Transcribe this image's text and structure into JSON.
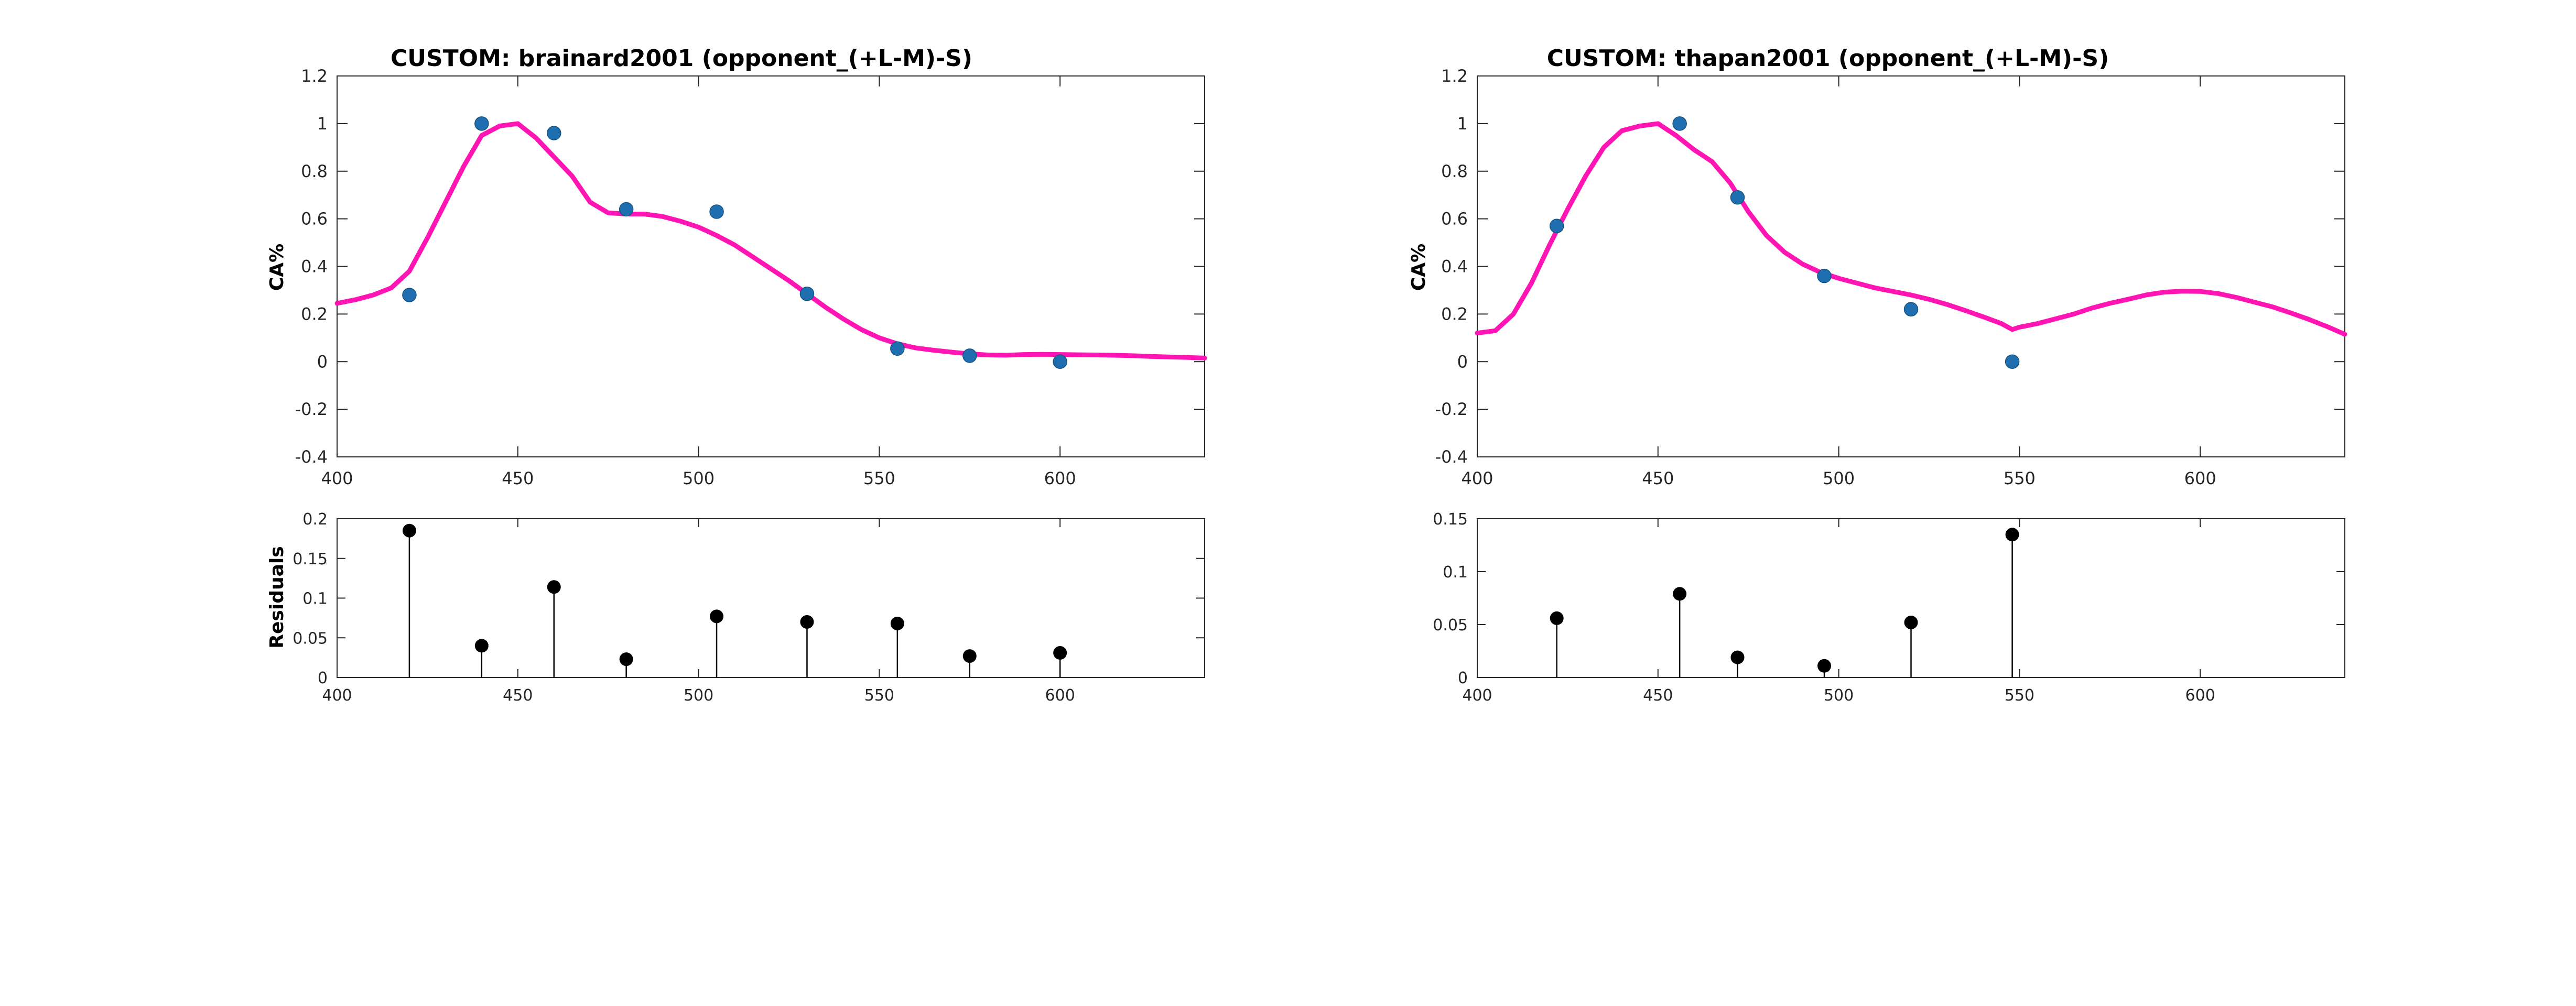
{
  "colors": {
    "fit": "#ff14b4",
    "points": "#1f6fb0",
    "points_edge": "#17527f",
    "stems": "#000000"
  },
  "chart_data": [
    {
      "type": "line",
      "title": "CUSTOM: brainard2001 (opponent_(+L-M)-S)",
      "xlabel": "",
      "ylabel": "CA%",
      "xlim": [
        400,
        640
      ],
      "ylim": [
        -0.4,
        1.2
      ],
      "xticks": [
        400,
        450,
        500,
        550,
        600
      ],
      "xtick_labels": [
        "400",
        "450",
        "500",
        "550",
        "600"
      ],
      "yticks": [
        -0.4,
        -0.2,
        0,
        0.2,
        0.4,
        0.6,
        0.8,
        1,
        1.2
      ],
      "ytick_labels": [
        "-0.4",
        "-0.2",
        "0",
        "0.2",
        "0.4",
        "0.6",
        "0.8",
        "1",
        "1.2"
      ],
      "grid": false,
      "series": [
        {
          "kind": "line",
          "x": [
            400,
            405,
            410,
            415,
            420,
            425,
            430,
            435,
            440,
            445,
            450,
            455,
            460,
            465,
            470,
            475,
            480,
            485,
            490,
            495,
            500,
            505,
            510,
            515,
            520,
            525,
            530,
            535,
            540,
            545,
            550,
            555,
            560,
            565,
            570,
            575,
            580,
            585,
            590,
            595,
            600,
            605,
            610,
            615,
            620,
            625,
            630,
            635,
            640
          ],
          "y": [
            0.245,
            0.26,
            0.28,
            0.31,
            0.38,
            0.52,
            0.67,
            0.82,
            0.95,
            0.99,
            1.0,
            0.94,
            0.86,
            0.78,
            0.67,
            0.625,
            0.62,
            0.62,
            0.61,
            0.59,
            0.565,
            0.53,
            0.49,
            0.44,
            0.39,
            0.34,
            0.285,
            0.23,
            0.18,
            0.135,
            0.1,
            0.075,
            0.058,
            0.048,
            0.04,
            0.033,
            0.028,
            0.027,
            0.03,
            0.031,
            0.03,
            0.029,
            0.028,
            0.027,
            0.025,
            0.022,
            0.02,
            0.018,
            0.015
          ]
        },
        {
          "kind": "scatter",
          "x": [
            420,
            440,
            460,
            480,
            505,
            530,
            555,
            575,
            600
          ],
          "y": [
            0.28,
            1.0,
            0.96,
            0.64,
            0.63,
            0.285,
            0.055,
            0.025,
            0.0
          ]
        }
      ]
    },
    {
      "type": "stem",
      "title": "",
      "xlabel": "",
      "ylabel": "Residuals",
      "xlim": [
        400,
        640
      ],
      "ylim": [
        0,
        0.2
      ],
      "xticks": [
        400,
        450,
        500,
        550,
        600
      ],
      "xtick_labels": [
        "400",
        "450",
        "500",
        "550",
        "600"
      ],
      "yticks": [
        0,
        0.05,
        0.1,
        0.15,
        0.2
      ],
      "ytick_labels": [
        "0",
        "0.05",
        "0.1",
        "0.15",
        "0.2"
      ],
      "grid": false,
      "series": [
        {
          "kind": "stem",
          "x": [
            420,
            440,
            460,
            480,
            505,
            530,
            555,
            575,
            600
          ],
          "y": [
            0.185,
            0.04,
            0.114,
            0.023,
            0.077,
            0.07,
            0.068,
            0.027,
            0.031
          ]
        }
      ]
    },
    {
      "type": "line",
      "title": "CUSTOM: thapan2001 (opponent_(+L-M)-S)",
      "xlabel": "",
      "ylabel": "CA%",
      "xlim": [
        400,
        640
      ],
      "ylim": [
        -0.4,
        1.2
      ],
      "xticks": [
        400,
        450,
        500,
        550,
        600
      ],
      "xtick_labels": [
        "400",
        "450",
        "500",
        "550",
        "600"
      ],
      "yticks": [
        -0.4,
        -0.2,
        0,
        0.2,
        0.4,
        0.6,
        0.8,
        1,
        1.2
      ],
      "ytick_labels": [
        "-0.4",
        "-0.2",
        "0",
        "0.2",
        "0.4",
        "0.6",
        "0.8",
        "1",
        "1.2"
      ],
      "grid": false,
      "series": [
        {
          "kind": "line",
          "x": [
            400,
            405,
            410,
            415,
            420,
            425,
            430,
            435,
            440,
            445,
            450,
            455,
            460,
            465,
            470,
            475,
            480,
            485,
            490,
            495,
            500,
            505,
            510,
            515,
            520,
            525,
            530,
            535,
            540,
            545,
            548,
            550,
            555,
            560,
            565,
            570,
            575,
            580,
            585,
            590,
            595,
            600,
            605,
            610,
            615,
            620,
            625,
            630,
            635,
            640
          ],
          "y": [
            0.12,
            0.13,
            0.2,
            0.33,
            0.49,
            0.64,
            0.78,
            0.9,
            0.97,
            0.99,
            1.0,
            0.95,
            0.89,
            0.84,
            0.75,
            0.63,
            0.53,
            0.46,
            0.41,
            0.375,
            0.35,
            0.33,
            0.31,
            0.295,
            0.28,
            0.262,
            0.24,
            0.215,
            0.188,
            0.16,
            0.135,
            0.145,
            0.16,
            0.18,
            0.2,
            0.225,
            0.245,
            0.262,
            0.28,
            0.292,
            0.296,
            0.295,
            0.286,
            0.27,
            0.25,
            0.23,
            0.205,
            0.178,
            0.148,
            0.115
          ]
        },
        {
          "kind": "scatter",
          "x": [
            422,
            456,
            472,
            496,
            520,
            548
          ],
          "y": [
            0.57,
            1.0,
            0.69,
            0.36,
            0.22,
            0.0
          ]
        }
      ]
    },
    {
      "type": "stem",
      "title": "",
      "xlabel": "",
      "ylabel": "",
      "xlim": [
        400,
        640
      ],
      "ylim": [
        0,
        0.15
      ],
      "xticks": [
        400,
        450,
        500,
        550,
        600
      ],
      "xtick_labels": [
        "400",
        "450",
        "500",
        "550",
        "600"
      ],
      "yticks": [
        0,
        0.05,
        0.1,
        0.15
      ],
      "ytick_labels": [
        "0",
        "0.05",
        "0.1",
        "0.15"
      ],
      "grid": false,
      "series": [
        {
          "kind": "stem",
          "x": [
            422,
            456,
            472,
            496,
            520,
            548
          ],
          "y": [
            0.056,
            0.079,
            0.019,
            0.011,
            0.052,
            0.135
          ]
        }
      ]
    }
  ]
}
